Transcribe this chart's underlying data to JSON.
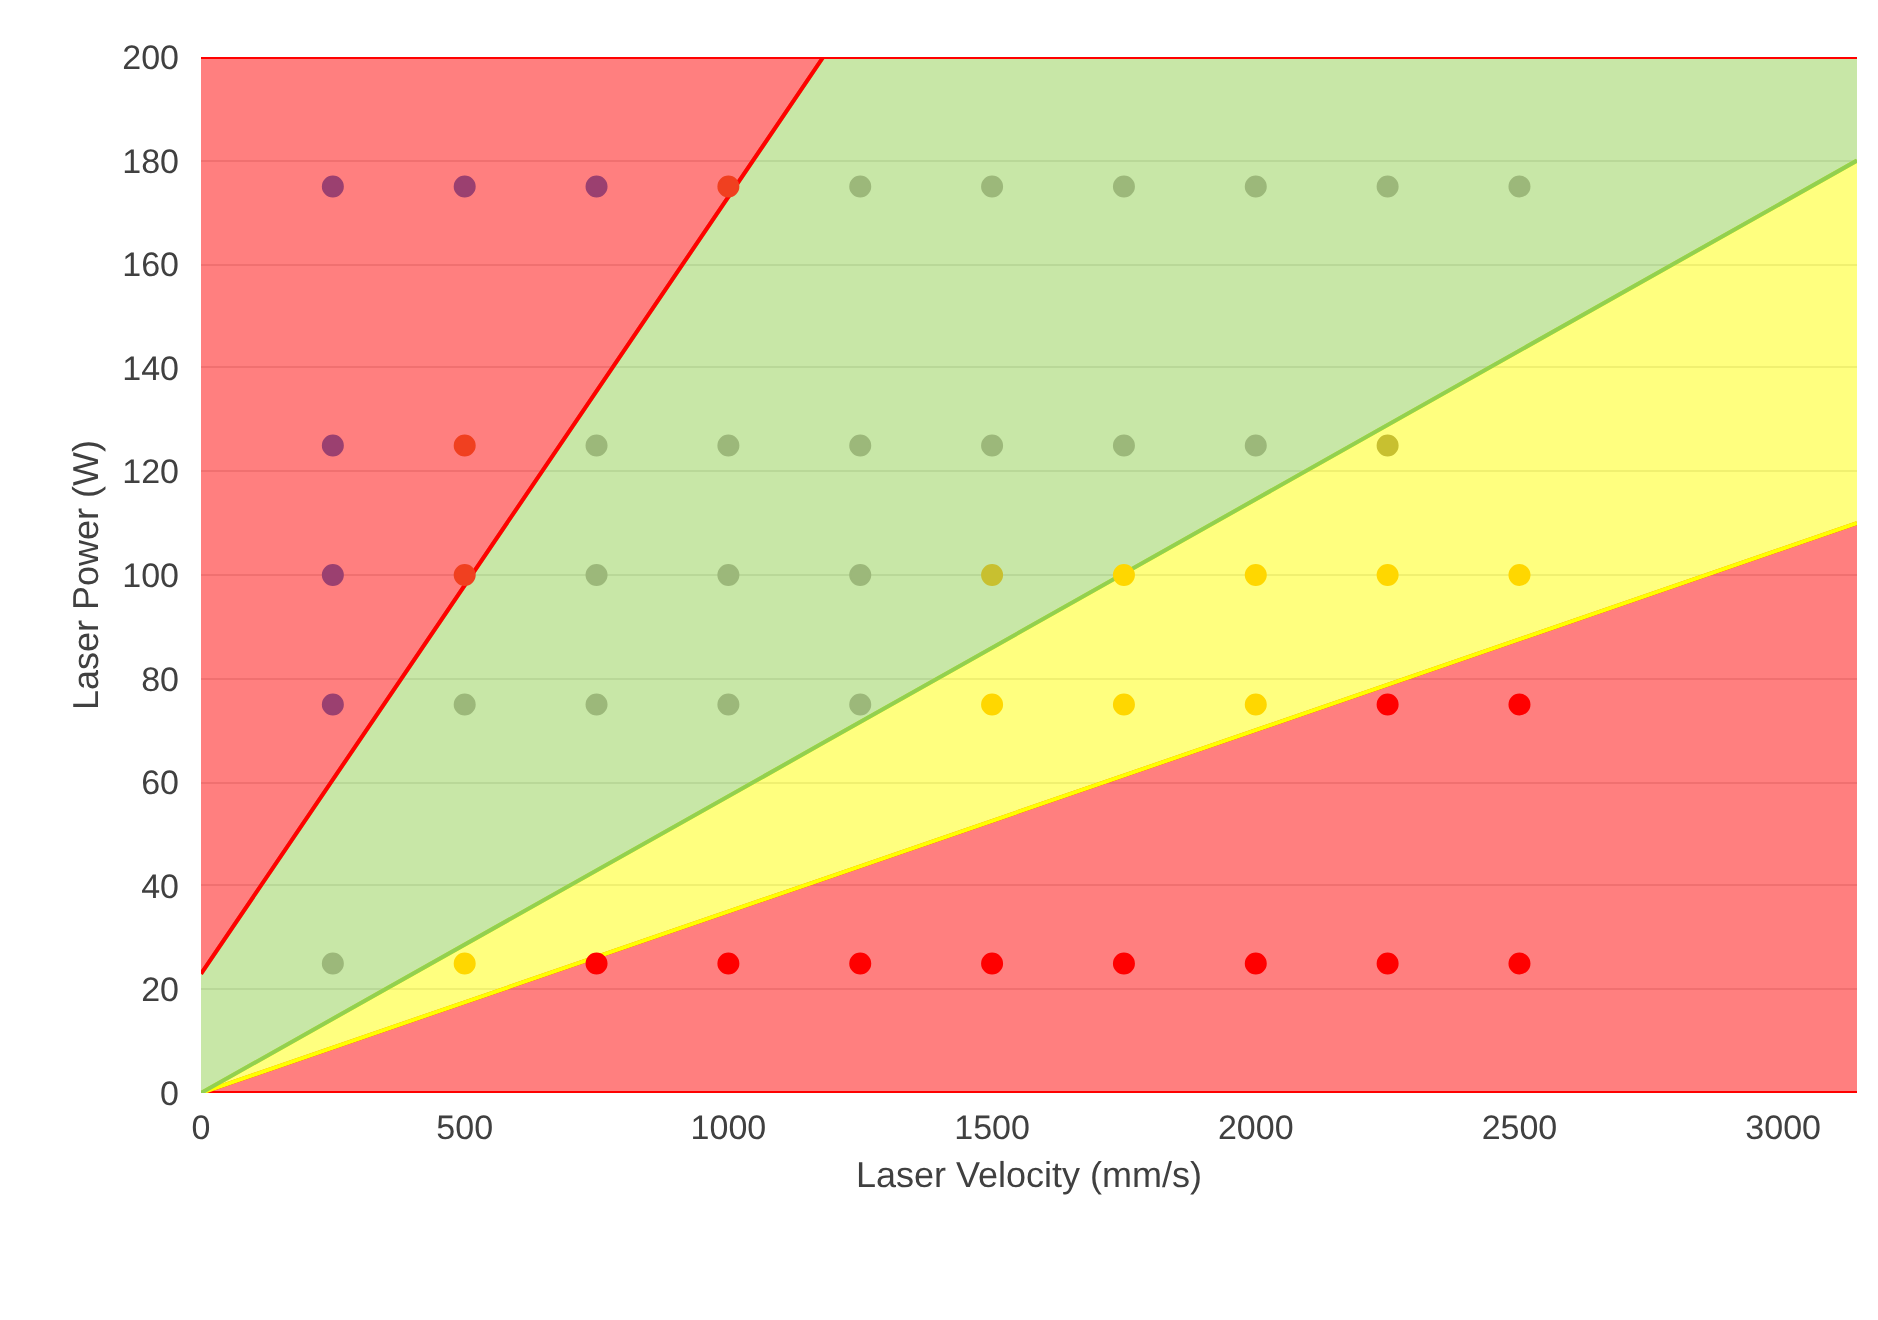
{
  "chart_data": {
    "type": "scatter",
    "xlabel": "Laser Velocity (mm/s)",
    "ylabel": "Laser Power (W)",
    "xlim": [
      0,
      3140
    ],
    "ylim": [
      0,
      200
    ],
    "xticks": [
      0,
      500,
      1000,
      1500,
      2000,
      2500,
      3000
    ],
    "yticks": [
      0,
      20,
      40,
      60,
      80,
      100,
      120,
      140,
      160,
      180,
      200
    ],
    "grid": "y",
    "marker": "circle",
    "stacked": true,
    "series": [
      {
        "type": "area",
        "marker": "none",
        "color": "#ff0000",
        "x": [
          0,
          1180,
          3140
        ],
        "values": [
          0,
          41.3,
          110
        ]
      },
      {
        "type": "area",
        "marker": "none",
        "color": "#ffff00",
        "x": [
          0,
          1180,
          3140
        ],
        "values": [
          0,
          26.3,
          70
        ]
      },
      {
        "type": "area",
        "marker": "none",
        "color": "#92d050",
        "x": [
          0,
          1180,
          3140
        ],
        "values": [
          23,
          132.4,
          20
        ]
      },
      {
        "type": "area",
        "marker": "none",
        "color": "#ff0000",
        "x": [
          0,
          1180,
          3140
        ],
        "values": [
          177,
          0,
          0
        ]
      },
      {
        "color": "#9b4070",
        "x": [
          250,
          500,
          750,
          250,
          250,
          250
        ],
        "values": [
          175,
          175,
          175,
          125,
          100,
          75
        ]
      },
      {
        "color": "#f04020",
        "x": [
          1000,
          500,
          500
        ],
        "values": [
          175,
          125,
          100
        ]
      },
      {
        "color": "#9cb87a",
        "x": [
          1250,
          1500,
          1750,
          2000,
          2250,
          2500,
          750,
          1000,
          1250,
          1500,
          1750,
          2000,
          750,
          1000,
          1250,
          500,
          750,
          1000,
          1250,
          250
        ],
        "values": [
          175,
          175,
          175,
          175,
          175,
          175,
          125,
          125,
          125,
          125,
          125,
          125,
          100,
          100,
          100,
          75,
          75,
          75,
          75,
          25
        ]
      },
      {
        "color": "#c8c030",
        "x": [
          2250,
          1500
        ],
        "values": [
          125,
          100
        ]
      },
      {
        "color": "#ffd700",
        "x": [
          1750,
          2000,
          2250,
          2500,
          1500,
          1750,
          2000,
          500
        ],
        "values": [
          100,
          100,
          100,
          100,
          75,
          75,
          75,
          25
        ]
      },
      {
        "color": "#ff0000",
        "x": [
          2250,
          2500,
          750,
          1000,
          1250,
          1500,
          1750,
          2000,
          2250,
          2500
        ],
        "values": [
          75,
          75,
          25,
          25,
          25,
          25,
          25,
          25,
          25,
          25
        ]
      }
    ]
  }
}
